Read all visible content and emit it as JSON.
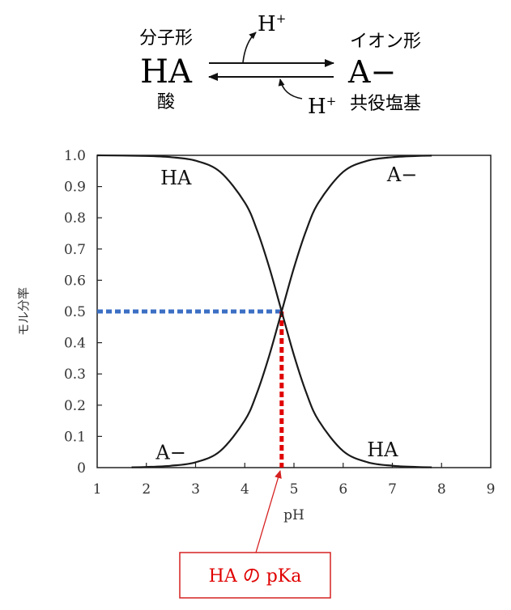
{
  "diagram": {
    "left_caption": "分子形",
    "left_species": "HA",
    "left_sub": "酸",
    "proton_top": "H",
    "proton_top_sup": "+",
    "right_caption": "イオン形",
    "right_species": "A−",
    "proton_bottom": "H",
    "proton_bottom_sup": "+",
    "right_sub": "共役塩基"
  },
  "callout": {
    "label": "HA の pKa"
  },
  "colors": {
    "curve": "#1a1a1a",
    "half_line": "#3b6fc4",
    "pka_line": "#e00000",
    "callout_border": "#d62020"
  },
  "chart_data": {
    "type": "line",
    "title": "",
    "xlabel": "pH",
    "ylabel": "モル分率",
    "xlim": [
      1,
      9
    ],
    "ylim": [
      0,
      1
    ],
    "x_ticks": [
      "1",
      "2",
      "3",
      "4",
      "5",
      "6",
      "7",
      "8",
      "9"
    ],
    "y_ticks": [
      "0",
      "0.1",
      "0.2",
      "0.3",
      "0.4",
      "0.5",
      "0.6",
      "0.7",
      "0.8",
      "0.9",
      "1.0"
    ],
    "grid": false,
    "pKa": 4.75,
    "series": [
      {
        "name": "HA",
        "x": [
          1,
          2,
          2.5,
          3,
          3.5,
          4,
          4.25,
          4.5,
          4.75,
          5,
          5.25,
          5.5,
          6,
          6.5,
          7,
          7.5,
          7.8
        ],
        "y": [
          1.0,
          0.998,
          0.994,
          0.983,
          0.947,
          0.849,
          0.76,
          0.64,
          0.5,
          0.36,
          0.24,
          0.151,
          0.053,
          0.017,
          0.006,
          0.002,
          0.001
        ]
      },
      {
        "name": "A−",
        "x": [
          1.7,
          2,
          2.5,
          3,
          3.5,
          4,
          4.25,
          4.5,
          4.75,
          5,
          5.25,
          5.5,
          6,
          6.5,
          7,
          7.5,
          7.8
        ],
        "y": [
          0.001,
          0.002,
          0.006,
          0.017,
          0.053,
          0.151,
          0.24,
          0.36,
          0.5,
          0.64,
          0.76,
          0.849,
          0.947,
          0.983,
          0.994,
          0.998,
          0.999
        ]
      }
    ],
    "annotations": [
      {
        "text": "HA",
        "x": 2.6,
        "y": 0.93
      },
      {
        "text": "A−",
        "x": 7.2,
        "y": 0.94
      },
      {
        "text": "A−",
        "x": 2.5,
        "y": 0.05
      },
      {
        "text": "HA",
        "x": 6.8,
        "y": 0.06
      }
    ],
    "guides": [
      {
        "kind": "horizontal",
        "y": 0.5,
        "x_from": 1,
        "x_to": 4.75,
        "style": "dashed-blue"
      },
      {
        "kind": "vertical",
        "x": 4.75,
        "y_from": 0,
        "y_to": 0.5,
        "style": "dashed-red"
      }
    ]
  }
}
